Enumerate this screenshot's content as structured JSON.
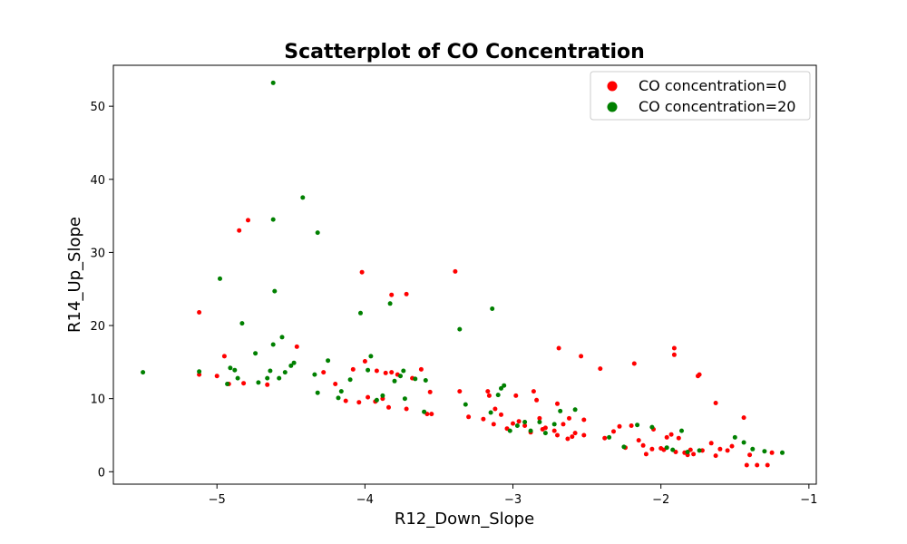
{
  "chart_data": {
    "type": "scatter",
    "title": "Scatterplot of CO Concentration",
    "xlabel": "R12_Down_Slope",
    "ylabel": "R14_Up_Slope",
    "xlim": [
      -5.7,
      -0.95
    ],
    "ylim": [
      -1.7,
      55.6
    ],
    "xticks": [
      -5,
      -4,
      -3,
      -2,
      -1
    ],
    "yticks": [
      0,
      10,
      20,
      30,
      40,
      50
    ],
    "xtick_labels": [
      "−5",
      "−4",
      "−3",
      "−2",
      "−1"
    ],
    "ytick_labels": [
      "0",
      "10",
      "20",
      "30",
      "40",
      "50"
    ],
    "grid": false,
    "legend_position": "top-right",
    "series": [
      {
        "name": "CO concentration=0",
        "color": "#ff0000",
        "points": [
          [
            -5.12,
            21.8
          ],
          [
            -5.12,
            13.3
          ],
          [
            -5.0,
            13.1
          ],
          [
            -4.95,
            15.8
          ],
          [
            -4.92,
            12.0
          ],
          [
            -4.85,
            33.0
          ],
          [
            -4.82,
            12.1
          ],
          [
            -4.79,
            34.4
          ],
          [
            -4.66,
            11.9
          ],
          [
            -4.46,
            17.1
          ],
          [
            -4.28,
            13.6
          ],
          [
            -4.2,
            12.0
          ],
          [
            -4.13,
            9.7
          ],
          [
            -4.08,
            14.0
          ],
          [
            -4.04,
            9.5
          ],
          [
            -4.02,
            27.3
          ],
          [
            -4.0,
            15.1
          ],
          [
            -3.98,
            10.2
          ],
          [
            -3.93,
            9.6
          ],
          [
            -3.92,
            13.8
          ],
          [
            -3.88,
            10.0
          ],
          [
            -3.86,
            13.5
          ],
          [
            -3.84,
            8.8
          ],
          [
            -3.82,
            24.2
          ],
          [
            -3.82,
            13.6
          ],
          [
            -3.78,
            13.3
          ],
          [
            -3.72,
            24.3
          ],
          [
            -3.72,
            8.6
          ],
          [
            -3.68,
            12.8
          ],
          [
            -3.62,
            14.0
          ],
          [
            -3.58,
            7.9
          ],
          [
            -3.56,
            10.9
          ],
          [
            -3.55,
            7.9
          ],
          [
            -3.39,
            27.4
          ],
          [
            -3.36,
            11.0
          ],
          [
            -3.3,
            7.5
          ],
          [
            -3.2,
            7.2
          ],
          [
            -3.17,
            11.0
          ],
          [
            -3.16,
            10.4
          ],
          [
            -3.13,
            6.5
          ],
          [
            -3.12,
            8.6
          ],
          [
            -3.08,
            7.8
          ],
          [
            -3.04,
            5.9
          ],
          [
            -3.0,
            6.6
          ],
          [
            -2.98,
            10.4
          ],
          [
            -2.96,
            6.9
          ],
          [
            -2.92,
            6.3
          ],
          [
            -2.88,
            5.4
          ],
          [
            -2.86,
            11.0
          ],
          [
            -2.84,
            9.8
          ],
          [
            -2.82,
            7.3
          ],
          [
            -2.8,
            5.8
          ],
          [
            -2.78,
            6.0
          ],
          [
            -2.72,
            5.6
          ],
          [
            -2.7,
            5.0
          ],
          [
            -2.7,
            9.3
          ],
          [
            -2.69,
            16.9
          ],
          [
            -2.66,
            6.5
          ],
          [
            -2.63,
            4.5
          ],
          [
            -2.62,
            7.3
          ],
          [
            -2.6,
            4.8
          ],
          [
            -2.58,
            5.3
          ],
          [
            -2.54,
            15.8
          ],
          [
            -2.52,
            7.1
          ],
          [
            -2.52,
            5.0
          ],
          [
            -2.41,
            14.1
          ],
          [
            -2.38,
            4.6
          ],
          [
            -2.32,
            5.5
          ],
          [
            -2.28,
            6.2
          ],
          [
            -2.24,
            3.3
          ],
          [
            -2.2,
            6.3
          ],
          [
            -2.18,
            14.8
          ],
          [
            -2.15,
            4.3
          ],
          [
            -2.12,
            3.6
          ],
          [
            -2.1,
            2.4
          ],
          [
            -2.06,
            3.1
          ],
          [
            -2.05,
            5.8
          ],
          [
            -2.0,
            3.2
          ],
          [
            -1.98,
            3.0
          ],
          [
            -1.96,
            4.7
          ],
          [
            -1.93,
            5.1
          ],
          [
            -1.91,
            16.9
          ],
          [
            -1.91,
            16.0
          ],
          [
            -1.9,
            2.7
          ],
          [
            -1.88,
            4.6
          ],
          [
            -1.84,
            2.6
          ],
          [
            -1.82,
            2.3
          ],
          [
            -1.8,
            3.0
          ],
          [
            -1.78,
            2.4
          ],
          [
            -1.75,
            13.1
          ],
          [
            -1.74,
            13.3
          ],
          [
            -1.72,
            2.9
          ],
          [
            -1.66,
            3.9
          ],
          [
            -1.63,
            9.4
          ],
          [
            -1.63,
            2.2
          ],
          [
            -1.6,
            3.1
          ],
          [
            -1.55,
            2.9
          ],
          [
            -1.52,
            3.5
          ],
          [
            -1.44,
            7.4
          ],
          [
            -1.42,
            0.9
          ],
          [
            -1.4,
            2.3
          ],
          [
            -1.35,
            0.9
          ],
          [
            -1.28,
            0.9
          ],
          [
            -1.25,
            2.6
          ]
        ]
      },
      {
        "name": "CO concentration=20",
        "color": "#008000",
        "points": [
          [
            -5.5,
            13.6
          ],
          [
            -5.12,
            13.7
          ],
          [
            -4.98,
            26.4
          ],
          [
            -4.93,
            12.0
          ],
          [
            -4.91,
            14.2
          ],
          [
            -4.88,
            13.9
          ],
          [
            -4.86,
            12.8
          ],
          [
            -4.83,
            20.3
          ],
          [
            -4.74,
            16.2
          ],
          [
            -4.72,
            12.2
          ],
          [
            -4.66,
            12.8
          ],
          [
            -4.64,
            13.8
          ],
          [
            -4.62,
            53.2
          ],
          [
            -4.62,
            34.5
          ],
          [
            -4.61,
            24.7
          ],
          [
            -4.62,
            17.4
          ],
          [
            -4.58,
            12.8
          ],
          [
            -4.56,
            18.4
          ],
          [
            -4.54,
            13.6
          ],
          [
            -4.5,
            14.5
          ],
          [
            -4.48,
            14.9
          ],
          [
            -4.42,
            37.5
          ],
          [
            -4.34,
            13.3
          ],
          [
            -4.32,
            32.7
          ],
          [
            -4.32,
            10.8
          ],
          [
            -4.25,
            15.2
          ],
          [
            -4.18,
            10.1
          ],
          [
            -4.16,
            11.0
          ],
          [
            -4.1,
            12.6
          ],
          [
            -4.03,
            21.7
          ],
          [
            -3.98,
            13.9
          ],
          [
            -3.96,
            15.8
          ],
          [
            -3.92,
            9.8
          ],
          [
            -3.88,
            10.4
          ],
          [
            -3.83,
            23.0
          ],
          [
            -3.8,
            12.4
          ],
          [
            -3.76,
            13.1
          ],
          [
            -3.74,
            13.8
          ],
          [
            -3.73,
            10.0
          ],
          [
            -3.66,
            12.7
          ],
          [
            -3.6,
            8.2
          ],
          [
            -3.59,
            12.5
          ],
          [
            -3.36,
            19.5
          ],
          [
            -3.32,
            9.2
          ],
          [
            -3.15,
            8.1
          ],
          [
            -3.14,
            22.3
          ],
          [
            -3.1,
            10.5
          ],
          [
            -3.08,
            11.4
          ],
          [
            -3.06,
            11.8
          ],
          [
            -3.02,
            5.6
          ],
          [
            -2.97,
            6.3
          ],
          [
            -2.92,
            6.8
          ],
          [
            -2.88,
            5.6
          ],
          [
            -2.82,
            6.8
          ],
          [
            -2.78,
            5.3
          ],
          [
            -2.72,
            6.5
          ],
          [
            -2.68,
            8.3
          ],
          [
            -2.58,
            8.5
          ],
          [
            -2.35,
            4.7
          ],
          [
            -2.25,
            3.4
          ],
          [
            -2.16,
            6.4
          ],
          [
            -2.06,
            6.1
          ],
          [
            -1.96,
            3.3
          ],
          [
            -1.92,
            3.0
          ],
          [
            -1.86,
            5.6
          ],
          [
            -1.82,
            2.7
          ],
          [
            -1.74,
            2.9
          ],
          [
            -1.5,
            4.7
          ],
          [
            -1.44,
            4.0
          ],
          [
            -1.38,
            3.1
          ],
          [
            -1.3,
            2.8
          ],
          [
            -1.18,
            2.6
          ]
        ]
      }
    ]
  }
}
